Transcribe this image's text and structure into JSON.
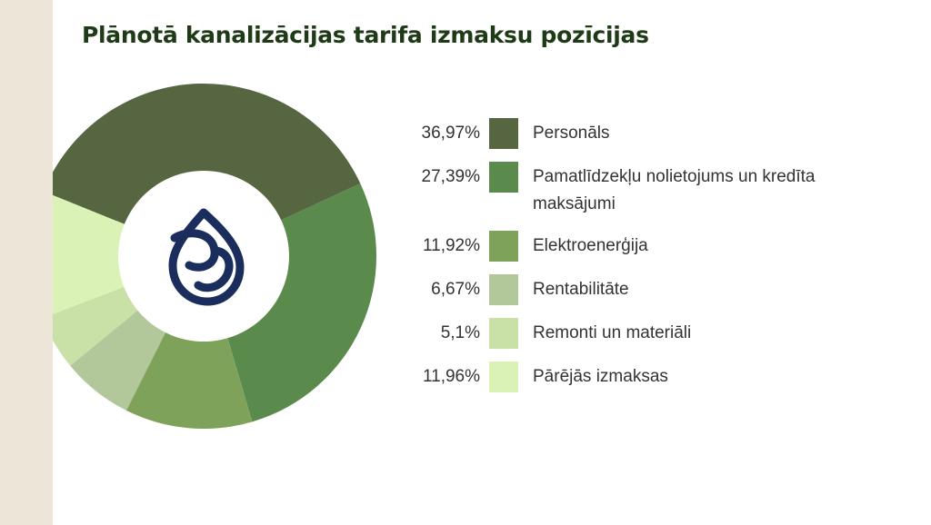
{
  "title": "Plānotā kanalizācijas tarifa izmaksu pozīcijas",
  "logo": {
    "icon": "water-drop-logo-icon",
    "color": "#1b2d5c"
  },
  "chart_data": {
    "type": "donut",
    "title": "Plānotā kanalizācijas tarifa izmaksu pozīcijas",
    "unit": "%",
    "legend": "right",
    "slices": [
      {
        "label": "Personāls",
        "value": 36.97,
        "display": "36,97%",
        "color": "#566640"
      },
      {
        "label": "Pamatlīdzekļu nolietojums un kredīta maksājumi",
        "value": 27.39,
        "display": "27,39%",
        "color": "#5a8a4c"
      },
      {
        "label": "Elektroenerģija",
        "value": 11.92,
        "display": "11,92%",
        "color": "#7ea25a"
      },
      {
        "label": "Rentabilitāte",
        "value": 6.67,
        "display": "6,67%",
        "color": "#b2c89a"
      },
      {
        "label": "Remonti un materiāli",
        "value": 5.1,
        "display": "5,1%",
        "color": "#c9e0a7"
      },
      {
        "label": "Pārējās izmaksas",
        "value": 11.96,
        "display": "11,96%",
        "color": "#dbf2b6"
      }
    ]
  }
}
